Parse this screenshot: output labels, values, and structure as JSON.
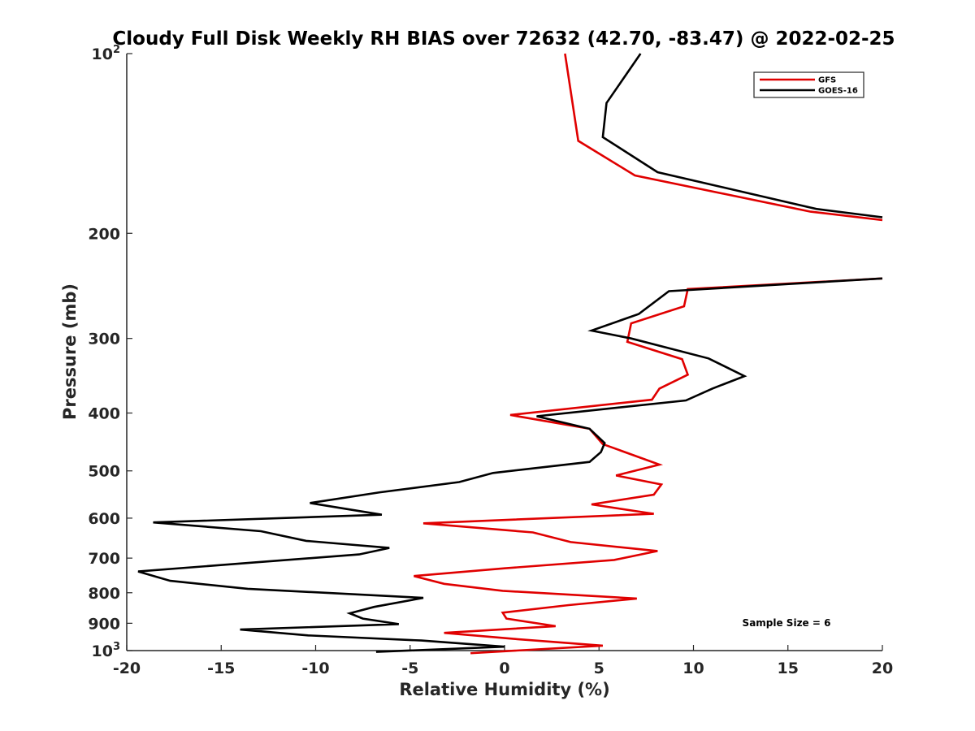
{
  "chart_data": {
    "type": "line",
    "title": "Cloudy Full Disk Weekly RH BIAS over 72632 (42.70, -83.47) @ 2022-02-25",
    "xlabel": "Relative Humidity (%)",
    "ylabel": "Pressure (mb)",
    "xlim": [
      -20,
      20
    ],
    "ylim": [
      100,
      1000
    ],
    "y_scale": "log",
    "y_reversed": true,
    "x_ticks": [
      "-20",
      "-15",
      "-10",
      "-5",
      "0",
      "5",
      "10",
      "15",
      "20"
    ],
    "y_ticks": [
      {
        "value": 100,
        "base": "10",
        "exp": "2"
      },
      {
        "value": 200,
        "base": "200",
        "exp": ""
      },
      {
        "value": 300,
        "base": "300",
        "exp": ""
      },
      {
        "value": 400,
        "base": "400",
        "exp": ""
      },
      {
        "value": 500,
        "base": "500",
        "exp": ""
      },
      {
        "value": 600,
        "base": "600",
        "exp": ""
      },
      {
        "value": 700,
        "base": "700",
        "exp": ""
      },
      {
        "value": 800,
        "base": "800",
        "exp": ""
      },
      {
        "value": 900,
        "base": "900",
        "exp": ""
      },
      {
        "value": 1000,
        "base": "10",
        "exp": "3"
      }
    ],
    "legend_position": "top-right",
    "grid": false,
    "annotation": "Sample Size = 6",
    "series": [
      {
        "name": "GFS",
        "color": "#e00000",
        "points": [
          [
            3.2,
            100
          ],
          [
            3.9,
            140
          ],
          [
            6.9,
            160
          ],
          [
            16.2,
            184
          ],
          [
            20.0,
            190
          ],
          [
            null,
            null
          ],
          [
            20.0,
            238
          ],
          [
            9.7,
            248
          ],
          [
            9.5,
            265
          ],
          [
            6.7,
            283
          ],
          [
            6.5,
            304
          ],
          [
            9.4,
            325
          ],
          [
            9.7,
            345
          ],
          [
            8.2,
            364
          ],
          [
            7.8,
            380
          ],
          [
            0.3,
            403
          ],
          [
            4.5,
            425
          ],
          [
            5.2,
            451
          ],
          [
            8.2,
            488
          ],
          [
            5.9,
            509
          ],
          [
            8.3,
            527
          ],
          [
            7.9,
            548
          ],
          [
            4.6,
            569
          ],
          [
            7.9,
            590
          ],
          [
            -4.3,
            612
          ],
          [
            1.5,
            634
          ],
          [
            3.5,
            658
          ],
          [
            8.1,
            681
          ],
          [
            5.8,
            705
          ],
          [
            0.0,
            728
          ],
          [
            -4.8,
            750
          ],
          [
            -3.2,
            773
          ],
          [
            -0.1,
            794
          ],
          [
            7.0,
            818
          ],
          [
            3.4,
            839
          ],
          [
            -0.1,
            864
          ],
          [
            0.1,
            884
          ],
          [
            2.7,
            910
          ],
          [
            -3.2,
            934
          ],
          [
            0.5,
            956
          ],
          [
            5.2,
            981
          ],
          [
            -1.8,
            1010
          ]
        ]
      },
      {
        "name": "GOES-16",
        "color": "#000000",
        "points": [
          [
            7.2,
            100
          ],
          [
            5.4,
            121
          ],
          [
            5.2,
            138
          ],
          [
            8.1,
            158
          ],
          [
            16.5,
            182
          ],
          [
            20.0,
            188
          ],
          [
            null,
            null
          ],
          [
            20.0,
            238
          ],
          [
            8.7,
            250
          ],
          [
            7.1,
            273
          ],
          [
            4.6,
            291
          ],
          [
            6.7,
            300
          ],
          [
            10.8,
            324
          ],
          [
            12.7,
            347
          ],
          [
            11.0,
            364
          ],
          [
            9.6,
            381
          ],
          [
            1.7,
            405
          ],
          [
            4.5,
            425
          ],
          [
            5.3,
            449
          ],
          [
            5.1,
            465
          ],
          [
            4.5,
            483
          ],
          [
            -0.6,
            504
          ],
          [
            -2.4,
            522
          ],
          [
            -6.6,
            543
          ],
          [
            -10.3,
            566
          ],
          [
            -6.5,
            592
          ],
          [
            -18.6,
            610
          ],
          [
            -12.9,
            631
          ],
          [
            -10.5,
            655
          ],
          [
            -6.1,
            673
          ],
          [
            -7.7,
            690
          ],
          [
            -13.3,
            712
          ],
          [
            -19.4,
            737
          ],
          [
            -17.7,
            764
          ],
          [
            -13.6,
            788
          ],
          [
            -4.3,
            816
          ],
          [
            -6.9,
            845
          ],
          [
            -8.2,
            866
          ],
          [
            -7.5,
            884
          ],
          [
            -5.6,
            903
          ],
          [
            -14.0,
            922
          ],
          [
            -10.4,
            943
          ],
          [
            -4.4,
            962
          ],
          [
            0.0,
            985
          ],
          [
            -6.8,
            1005
          ]
        ]
      }
    ]
  }
}
